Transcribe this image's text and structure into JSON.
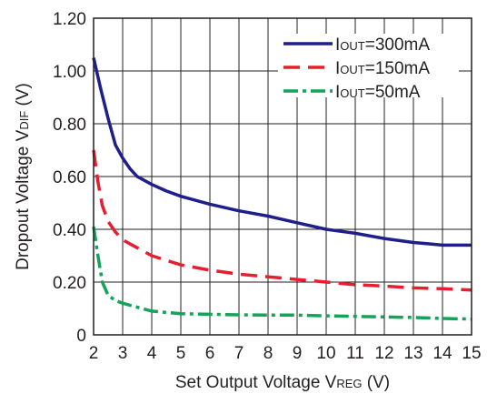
{
  "chart_data": {
    "type": "line",
    "xlabel": {
      "main": "Set Output Voltage V",
      "sub": "REG",
      "unit": " (V)"
    },
    "ylabel": {
      "main": "Dropout Voltage V",
      "sub": "DIF",
      "unit": " (V)"
    },
    "xlim": [
      2,
      15
    ],
    "ylim": [
      0,
      1.2
    ],
    "x_ticks": [
      "2",
      "3",
      "4",
      "5",
      "6",
      "7",
      "8",
      "9",
      "10",
      "11",
      "12",
      "13",
      "14",
      "15"
    ],
    "y_ticks": [
      "0",
      "0.20",
      "0.40",
      "0.60",
      "0.80",
      "1.00",
      "1.20"
    ],
    "grid": true,
    "legend_position": "top-right",
    "series": [
      {
        "name": {
          "main": "I",
          "sub": "OUT",
          "rest": "=300mA"
        },
        "color": "#1f1f8c",
        "dash": "solid",
        "x": [
          2,
          2.25,
          2.5,
          2.75,
          3,
          3.25,
          3.5,
          4,
          4.5,
          5,
          5.5,
          6,
          7,
          8,
          9,
          10,
          11,
          12,
          13,
          13.5,
          14,
          15
        ],
        "y": [
          1.05,
          0.93,
          0.82,
          0.72,
          0.67,
          0.63,
          0.6,
          0.57,
          0.545,
          0.525,
          0.51,
          0.495,
          0.47,
          0.45,
          0.425,
          0.4,
          0.385,
          0.365,
          0.35,
          0.345,
          0.34,
          0.34
        ]
      },
      {
        "name": {
          "main": "I",
          "sub": "OUT",
          "rest": "=150mA"
        },
        "color": "#e5202e",
        "dash": "long-dash",
        "x": [
          2,
          2.15,
          2.3,
          2.5,
          2.75,
          3,
          3.5,
          4,
          5,
          6,
          7,
          8,
          9,
          10,
          11,
          12,
          13,
          14,
          15
        ],
        "y": [
          0.7,
          0.58,
          0.49,
          0.43,
          0.39,
          0.36,
          0.33,
          0.3,
          0.265,
          0.245,
          0.23,
          0.22,
          0.21,
          0.2,
          0.19,
          0.185,
          0.178,
          0.175,
          0.17
        ]
      },
      {
        "name": {
          "main": "I",
          "sub": "OUT",
          "rest": "=50mA"
        },
        "color": "#13a359",
        "dash": "dash-dot",
        "x": [
          2,
          2.15,
          2.3,
          2.5,
          2.75,
          3,
          3.5,
          4,
          5,
          6,
          7,
          8,
          9,
          10,
          11,
          12,
          13,
          14,
          15
        ],
        "y": [
          0.41,
          0.3,
          0.2,
          0.15,
          0.13,
          0.12,
          0.105,
          0.09,
          0.08,
          0.078,
          0.076,
          0.075,
          0.075,
          0.072,
          0.07,
          0.068,
          0.066,
          0.062,
          0.06
        ]
      }
    ]
  }
}
